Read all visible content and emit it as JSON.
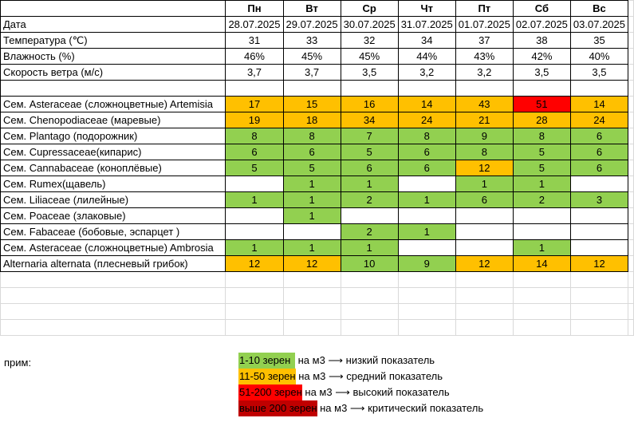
{
  "header": {
    "days": [
      "Пн",
      "Вт",
      "Ср",
      "Чт",
      "Пт",
      "Сб",
      "Вс"
    ],
    "date_label": "Дата",
    "dates": [
      "28.07.2025",
      "29.07.2025",
      "30.07.2025",
      "31.07.2025",
      "01.07.2025",
      "02.07.2025",
      "03.07.2025"
    ]
  },
  "weather": [
    {
      "label": "Температура (℃)",
      "values": [
        "31",
        "33",
        "32",
        "34",
        "37",
        "38",
        "35"
      ]
    },
    {
      "label": "Влажность (%)",
      "values": [
        "46%",
        "45%",
        "45%",
        "44%",
        "43%",
        "42%",
        "40%"
      ]
    },
    {
      "label": "Скорость ветра (м/с)",
      "values": [
        "3,7",
        "3,7",
        "3,5",
        "3,2",
        "3,2",
        "3,5",
        "3,5"
      ]
    }
  ],
  "colors": {
    "low": "#92d050",
    "medium": "#ffc000",
    "high": "#ff0000",
    "critical": "#c00000"
  },
  "pollen": [
    {
      "label": "Сем. Asteraceae (сложноцветные) Artemisia",
      "values": [
        "17",
        "15",
        "16",
        "14",
        "43",
        "51",
        "14"
      ],
      "levels": [
        "o",
        "o",
        "o",
        "o",
        "o",
        "r",
        "o"
      ]
    },
    {
      "label": "Сем. Chenopodiaceae (маревые)",
      "values": [
        "19",
        "18",
        "34",
        "24",
        "21",
        "28",
        "24"
      ],
      "levels": [
        "o",
        "o",
        "o",
        "o",
        "o",
        "o",
        "o"
      ]
    },
    {
      "label": "Сем. Plantago (подорожник)",
      "values": [
        "8",
        "8",
        "7",
        "8",
        "9",
        "8",
        "6"
      ],
      "levels": [
        "g",
        "g",
        "g",
        "g",
        "g",
        "g",
        "g"
      ]
    },
    {
      "label": "Сем. Cupressaceae(кипарис)",
      "values": [
        "6",
        "6",
        "5",
        "6",
        "8",
        "5",
        "6"
      ],
      "levels": [
        "g",
        "g",
        "g",
        "g",
        "g",
        "g",
        "g"
      ]
    },
    {
      "label": "Сем. Cannabaceae (коноплёвые)",
      "values": [
        "5",
        "5",
        "6",
        "6",
        "12",
        "5",
        "6"
      ],
      "levels": [
        "g",
        "g",
        "g",
        "g",
        "o",
        "g",
        "g"
      ]
    },
    {
      "label": "Сем. Rumex(щавель)",
      "values": [
        "",
        "1",
        "1",
        "",
        "1",
        "1",
        ""
      ],
      "levels": [
        "w",
        "g",
        "g",
        "w",
        "g",
        "g",
        "w"
      ]
    },
    {
      "label": "Сем. Liliaceae (лилейные)",
      "values": [
        "1",
        "1",
        "2",
        "1",
        "6",
        "2",
        "3"
      ],
      "levels": [
        "g",
        "g",
        "g",
        "g",
        "g",
        "g",
        "g"
      ]
    },
    {
      "label": "Сем. Poaceae (злаковые)",
      "values": [
        "",
        "1",
        "",
        "",
        "",
        "",
        ""
      ],
      "levels": [
        "w",
        "g",
        "w",
        "w",
        "w",
        "w",
        "w"
      ]
    },
    {
      "label": "Сем. Fabaceae (бобовые, эспарцет )",
      "values": [
        "",
        "",
        "2",
        "1",
        "",
        "",
        ""
      ],
      "levels": [
        "w",
        "w",
        "g",
        "g",
        "w",
        "w",
        "w"
      ]
    },
    {
      "label": "Сем. Asteraceae (сложноцветные) Ambrosia",
      "values": [
        "1",
        "1",
        "1",
        "",
        "",
        "1",
        ""
      ],
      "levels": [
        "g",
        "g",
        "g",
        "w",
        "w",
        "g",
        "w"
      ]
    },
    {
      "label": "Alternaria alternata (плесневый грибок)",
      "values": [
        "12",
        "12",
        "10",
        "9",
        "12",
        "14",
        "12"
      ],
      "levels": [
        "o",
        "o",
        "g",
        "g",
        "o",
        "o",
        "o"
      ]
    }
  ],
  "legend": {
    "note_label": "прим:",
    "items": [
      {
        "range": "1-10 зерен",
        "suffix": " на м3 ⟶ низкий показатель",
        "level": "low"
      },
      {
        "range": "11-50 зерен",
        "suffix": " на м3 ⟶ средний показатель",
        "level": "medium"
      },
      {
        "range": "51-200 зерен",
        "suffix": " на м3 ⟶ высокий показатель",
        "level": "high"
      },
      {
        "range": "выше 200 зерен",
        "suffix": " на м3 ⟶ критический показатель",
        "level": "critical"
      }
    ]
  }
}
